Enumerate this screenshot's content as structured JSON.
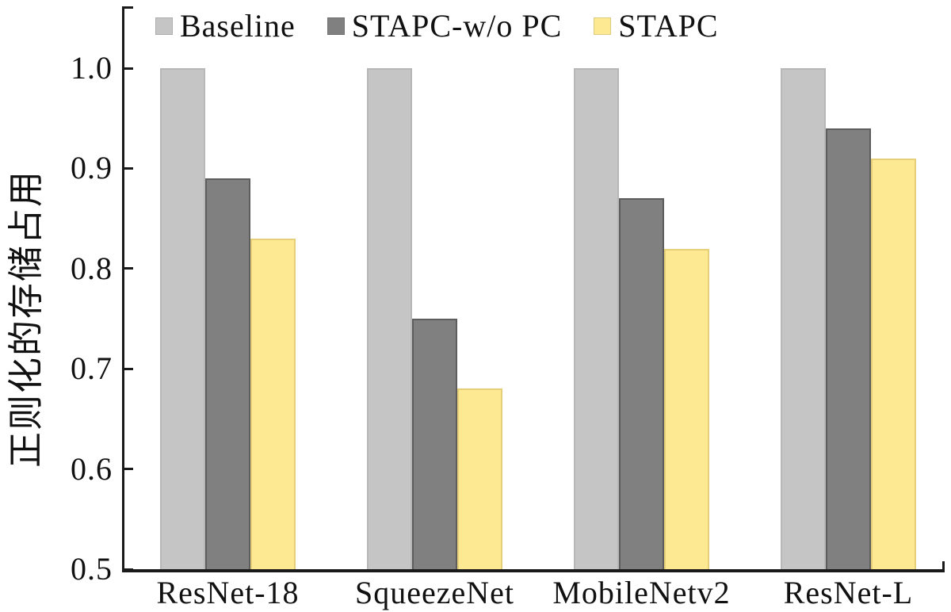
{
  "figure": {
    "background_color": "#ffffff",
    "axis_color": "#1a1a1a"
  },
  "chart_data": {
    "type": "bar",
    "title": "",
    "xlabel": "",
    "ylabel": "正则化的存储占用",
    "categories": [
      "ResNet-18",
      "SqueezeNet",
      "MobileNetv2",
      "ResNet-L"
    ],
    "series": [
      {
        "name": "Baseline",
        "color": "#c5c5c5",
        "border_color": "#b7b7b7",
        "values": [
          1.0,
          1.0,
          1.0,
          1.0
        ]
      },
      {
        "name": "STAPC-w/o PC",
        "color": "#808080",
        "border_color": "#5d5d5d",
        "values": [
          0.89,
          0.75,
          0.87,
          0.94
        ]
      },
      {
        "name": "STAPC",
        "color": "#fce992",
        "border_color": "#e7cf79",
        "values": [
          0.83,
          0.68,
          0.82,
          0.91
        ]
      }
    ],
    "ylim": [
      0.5,
      1.0
    ],
    "yticks": [
      1.0,
      0.9,
      0.8,
      0.7,
      0.6,
      0.5
    ],
    "ytick_labels": [
      "1.0",
      "0.9",
      "0.8",
      "0.7",
      "0.6",
      "0.5"
    ],
    "legend_position": "top-inside",
    "grid": false
  }
}
